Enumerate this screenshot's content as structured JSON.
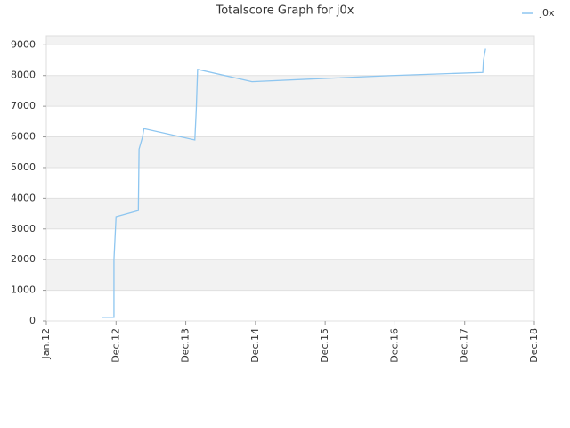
{
  "chart_data": {
    "type": "line",
    "title": "Totalscore Graph for j0x",
    "x": [
      0.8,
      0.97,
      0.97,
      1.0,
      1.32,
      1.33,
      1.38,
      1.4,
      2.13,
      2.15,
      2.17,
      2.95,
      3.93,
      4.96,
      6.26,
      6.27,
      6.3
    ],
    "series": [
      {
        "name": "j0x",
        "color": "#8ec6f0",
        "values": [
          120,
          120,
          2000,
          3400,
          3600,
          5600,
          6000,
          6270,
          5900,
          6850,
          8200,
          7800,
          7900,
          8000,
          8100,
          8500,
          8880
        ]
      }
    ],
    "xlim": [
      0,
      7
    ],
    "xticks": [
      {
        "value": 0,
        "label": "Jan.12"
      },
      {
        "value": 1,
        "label": "Dec.12"
      },
      {
        "value": 2,
        "label": "Dec.13"
      },
      {
        "value": 3,
        "label": "Dec.14"
      },
      {
        "value": 4,
        "label": "Dec.15"
      },
      {
        "value": 5,
        "label": "Dec.16"
      },
      {
        "value": 6,
        "label": "Dec.17"
      },
      {
        "value": 7,
        "label": "Dec.18"
      }
    ],
    "ylim": [
      0,
      9300
    ],
    "yticks": [
      0,
      1000,
      2000,
      3000,
      4000,
      5000,
      6000,
      7000,
      8000,
      9000
    ],
    "grid": true,
    "legend": "top-right"
  }
}
